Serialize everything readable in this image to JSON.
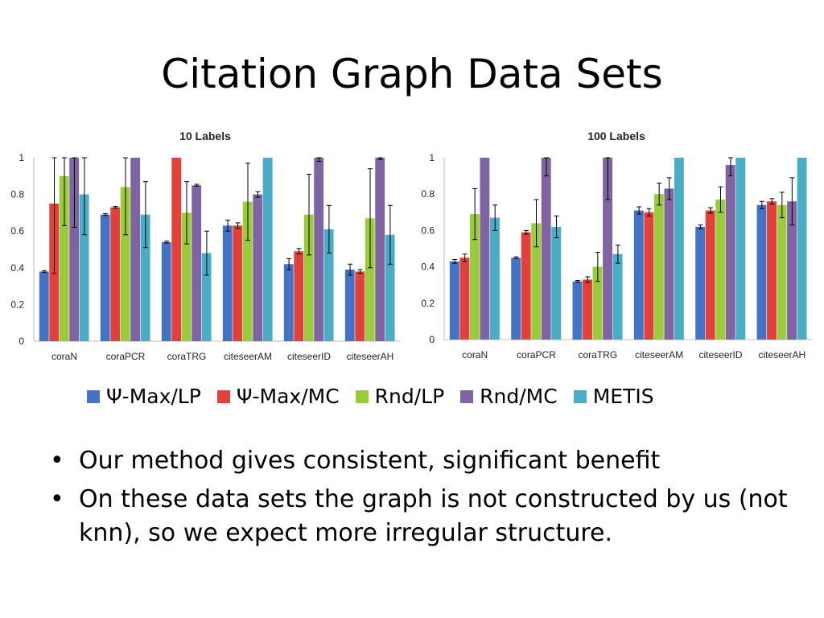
{
  "slide": {
    "title": "Citation Graph Data Sets",
    "bullets": [
      "Our method gives consistent, significant benefit",
      "On these data sets the graph is not constructed by us (not knn), so we expect more irregular structure."
    ]
  },
  "legend": [
    {
      "name": "Ψ-Max/LP",
      "color": "#4472C4"
    },
    {
      "name": "Ψ-Max/MC",
      "color": "#E0413A"
    },
    {
      "name": "Rnd/LP",
      "color": "#9BCB3C"
    },
    {
      "name": "Rnd/MC",
      "color": "#8064A2"
    },
    {
      "name": "METIS",
      "color": "#4BACC6"
    }
  ],
  "chart_data": [
    {
      "type": "bar",
      "title": "10 Labels",
      "categories": [
        "coraN",
        "coraPCR",
        "coraTRG",
        "citeseerAM",
        "citeseerID",
        "citeseerAH"
      ],
      "yticks": [
        "0",
        "0.2",
        "0.4",
        "0.6",
        "0.8",
        "1"
      ],
      "ylim": [
        0,
        1
      ],
      "grid": false,
      "series": [
        {
          "name": "Ψ-Max/LP",
          "values": [
            0.38,
            0.69,
            0.54,
            0.63,
            0.42,
            0.39
          ],
          "errors": [
            0.005,
            0.005,
            0.005,
            0.03,
            0.03,
            0.03
          ]
        },
        {
          "name": "Ψ-Max/MC",
          "values": [
            0.75,
            0.73,
            1.0,
            0.63,
            0.49,
            0.38
          ],
          "errors": [
            0.38,
            0.005,
            0.0,
            0.015,
            0.015,
            0.01
          ]
        },
        {
          "name": "Rnd/LP",
          "values": [
            0.9,
            0.84,
            0.7,
            0.76,
            0.69,
            0.67
          ],
          "errors": [
            0.27,
            0.26,
            0.17,
            0.21,
            0.22,
            0.27
          ]
        },
        {
          "name": "Rnd/MC",
          "values": [
            1.0,
            1.0,
            0.85,
            0.8,
            1.0,
            1.0
          ],
          "errors": [
            0.38,
            0.0,
            0.005,
            0.015,
            0.02,
            0.01
          ]
        },
        {
          "name": "METIS",
          "values": [
            0.8,
            0.69,
            0.48,
            1.0,
            0.61,
            0.58
          ],
          "errors": [
            0.22,
            0.18,
            0.12,
            0.0,
            0.13,
            0.16
          ]
        }
      ]
    },
    {
      "type": "bar",
      "title": "100 Labels",
      "categories": [
        "coraN",
        "coraPCR",
        "coraTRG",
        "citeseerAM",
        "citeseerID",
        "citeseerAH"
      ],
      "yticks": [
        "0",
        "0.2",
        "0.4",
        "0.6",
        "0.8",
        "1"
      ],
      "ylim": [
        0,
        1
      ],
      "grid": false,
      "series": [
        {
          "name": "Ψ-Max/LP",
          "values": [
            0.43,
            0.45,
            0.32,
            0.71,
            0.62,
            0.74
          ],
          "errors": [
            0.01,
            0.005,
            0.005,
            0.02,
            0.01,
            0.02
          ]
        },
        {
          "name": "Ψ-Max/MC",
          "values": [
            0.45,
            0.59,
            0.33,
            0.7,
            0.71,
            0.76
          ],
          "errors": [
            0.02,
            0.01,
            0.015,
            0.02,
            0.015,
            0.015
          ]
        },
        {
          "name": "Rnd/LP",
          "values": [
            0.69,
            0.64,
            0.4,
            0.8,
            0.77,
            0.74
          ],
          "errors": [
            0.14,
            0.13,
            0.08,
            0.06,
            0.07,
            0.07
          ]
        },
        {
          "name": "Rnd/MC",
          "values": [
            1.0,
            1.0,
            1.0,
            0.83,
            0.96,
            0.76
          ],
          "errors": [
            0.0,
            0.1,
            0.23,
            0.06,
            0.06,
            0.13
          ]
        },
        {
          "name": "METIS",
          "values": [
            0.67,
            0.62,
            0.47,
            1.0,
            1.0,
            1.0
          ],
          "errors": [
            0.07,
            0.06,
            0.05,
            0.0,
            0.0,
            0.0
          ]
        }
      ]
    }
  ]
}
